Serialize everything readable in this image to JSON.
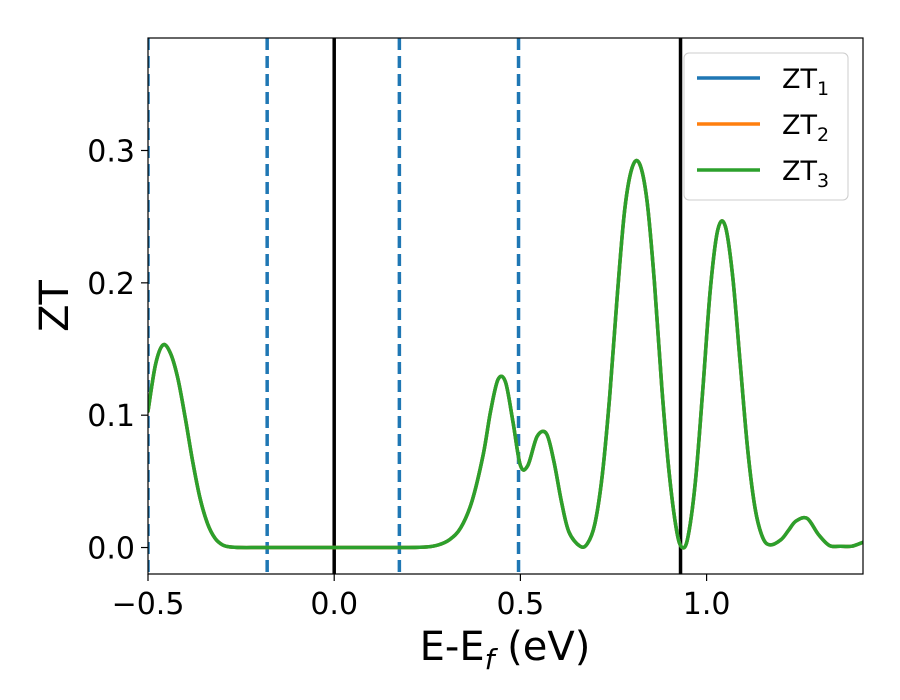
{
  "chart_data": {
    "type": "line",
    "title": "",
    "xlabel": "E-E",
    "xlabel_sub": "f",
    "xlabel_unit": " (eV)",
    "ylabel": "ZT",
    "xlim": [
      -0.5,
      1.42
    ],
    "ylim": [
      -0.02,
      0.385
    ],
    "xticks": [
      -0.5,
      0.0,
      0.5,
      1.0
    ],
    "xtick_labels": [
      "−0.5",
      "0.0",
      "0.5",
      "1.0"
    ],
    "yticks": [
      0.0,
      0.1,
      0.2,
      0.3
    ],
    "ytick_labels": [
      "0.0",
      "0.1",
      "0.2",
      "0.3"
    ],
    "grid": false,
    "legend_position": "top-right",
    "vlines_solid": [
      0.0,
      0.93
    ],
    "vlines_dashed": [
      -0.5,
      -0.18,
      0.175,
      0.495
    ],
    "vline_solid_color": "#000000",
    "vline_dashed_color": "#1f77b4",
    "series": [
      {
        "name": "ZT",
        "sub": "1",
        "color": "#1f77b4",
        "x": [
          -0.5,
          -0.48,
          -0.46,
          -0.44,
          -0.42,
          -0.4,
          -0.38,
          -0.36,
          -0.34,
          -0.32,
          -0.3,
          -0.28,
          -0.25,
          -0.2,
          -0.1,
          0.0,
          0.1,
          0.2,
          0.25,
          0.28,
          0.31,
          0.34,
          0.37,
          0.4,
          0.42,
          0.44,
          0.46,
          0.48,
          0.5,
          0.52,
          0.545,
          0.57,
          0.59,
          0.61,
          0.63,
          0.66,
          0.68,
          0.7,
          0.72,
          0.74,
          0.76,
          0.78,
          0.8,
          0.82,
          0.84,
          0.86,
          0.88,
          0.9,
          0.92,
          0.935,
          0.95,
          0.97,
          0.99,
          1.01,
          1.03,
          1.05,
          1.07,
          1.09,
          1.11,
          1.13,
          1.15,
          1.17,
          1.2,
          1.22,
          1.24,
          1.27,
          1.3,
          1.33,
          1.36,
          1.39,
          1.42
        ],
        "values": [
          0.103,
          0.138,
          0.153,
          0.147,
          0.128,
          0.098,
          0.065,
          0.037,
          0.018,
          0.007,
          0.002,
          0.0005,
          0.0,
          0.0,
          0.0,
          0.0,
          0.0,
          0.0,
          0.0005,
          0.002,
          0.006,
          0.015,
          0.035,
          0.07,
          0.103,
          0.127,
          0.125,
          0.095,
          0.062,
          0.062,
          0.084,
          0.086,
          0.065,
          0.035,
          0.012,
          0.001,
          0.003,
          0.018,
          0.055,
          0.115,
          0.19,
          0.255,
          0.287,
          0.29,
          0.262,
          0.2,
          0.12,
          0.055,
          0.012,
          0.0,
          0.008,
          0.05,
          0.12,
          0.195,
          0.24,
          0.243,
          0.205,
          0.14,
          0.075,
          0.03,
          0.008,
          0.002,
          0.006,
          0.013,
          0.02,
          0.022,
          0.01,
          0.0015,
          0.001,
          0.001,
          0.004
        ]
      },
      {
        "name": "ZT",
        "sub": "2",
        "color": "#ff7f0e",
        "x": [
          -0.5,
          -0.48,
          -0.46,
          -0.44,
          -0.42,
          -0.4,
          -0.38,
          -0.36,
          -0.34,
          -0.32,
          -0.3,
          -0.28,
          -0.25,
          -0.2,
          -0.1,
          0.0,
          0.1,
          0.2,
          0.25,
          0.28,
          0.31,
          0.34,
          0.37,
          0.4,
          0.42,
          0.44,
          0.46,
          0.48,
          0.5,
          0.52,
          0.545,
          0.57,
          0.59,
          0.61,
          0.63,
          0.66,
          0.68,
          0.7,
          0.72,
          0.74,
          0.76,
          0.78,
          0.8,
          0.82,
          0.84,
          0.86,
          0.88,
          0.9,
          0.92,
          0.935,
          0.95,
          0.97,
          0.99,
          1.01,
          1.03,
          1.05,
          1.07,
          1.09,
          1.11,
          1.13,
          1.15,
          1.17,
          1.2,
          1.22,
          1.24,
          1.27,
          1.3,
          1.33,
          1.36,
          1.39,
          1.42
        ],
        "values": [
          0.103,
          0.138,
          0.153,
          0.147,
          0.128,
          0.098,
          0.065,
          0.037,
          0.018,
          0.007,
          0.002,
          0.0005,
          0.0,
          0.0,
          0.0,
          0.0,
          0.0,
          0.0,
          0.0005,
          0.002,
          0.006,
          0.015,
          0.035,
          0.07,
          0.103,
          0.127,
          0.125,
          0.095,
          0.062,
          0.062,
          0.084,
          0.086,
          0.065,
          0.035,
          0.012,
          0.001,
          0.003,
          0.018,
          0.055,
          0.115,
          0.19,
          0.255,
          0.287,
          0.29,
          0.262,
          0.2,
          0.12,
          0.055,
          0.012,
          0.0,
          0.008,
          0.05,
          0.12,
          0.195,
          0.24,
          0.243,
          0.205,
          0.14,
          0.075,
          0.03,
          0.008,
          0.002,
          0.006,
          0.013,
          0.02,
          0.022,
          0.01,
          0.0015,
          0.001,
          0.001,
          0.004
        ]
      },
      {
        "name": "ZT",
        "sub": "3",
        "color": "#2ca02c",
        "x": [
          -0.5,
          -0.48,
          -0.46,
          -0.44,
          -0.42,
          -0.4,
          -0.38,
          -0.36,
          -0.34,
          -0.32,
          -0.3,
          -0.28,
          -0.25,
          -0.2,
          -0.1,
          0.0,
          0.1,
          0.2,
          0.25,
          0.28,
          0.31,
          0.34,
          0.37,
          0.4,
          0.42,
          0.44,
          0.46,
          0.48,
          0.5,
          0.52,
          0.545,
          0.57,
          0.59,
          0.61,
          0.63,
          0.66,
          0.68,
          0.7,
          0.72,
          0.74,
          0.76,
          0.78,
          0.8,
          0.82,
          0.84,
          0.86,
          0.88,
          0.9,
          0.92,
          0.935,
          0.95,
          0.97,
          0.99,
          1.01,
          1.03,
          1.05,
          1.07,
          1.09,
          1.11,
          1.13,
          1.15,
          1.17,
          1.2,
          1.22,
          1.24,
          1.27,
          1.3,
          1.33,
          1.36,
          1.39,
          1.42
        ],
        "values": [
          0.103,
          0.138,
          0.153,
          0.147,
          0.128,
          0.098,
          0.065,
          0.037,
          0.018,
          0.007,
          0.002,
          0.0005,
          0.0,
          0.0,
          0.0,
          0.0,
          0.0,
          0.0,
          0.0005,
          0.002,
          0.006,
          0.015,
          0.035,
          0.07,
          0.103,
          0.127,
          0.125,
          0.095,
          0.062,
          0.062,
          0.084,
          0.086,
          0.065,
          0.035,
          0.012,
          0.001,
          0.003,
          0.018,
          0.055,
          0.115,
          0.19,
          0.255,
          0.287,
          0.29,
          0.262,
          0.2,
          0.12,
          0.055,
          0.012,
          0.0,
          0.008,
          0.05,
          0.12,
          0.195,
          0.24,
          0.243,
          0.205,
          0.14,
          0.075,
          0.03,
          0.008,
          0.002,
          0.006,
          0.013,
          0.02,
          0.022,
          0.01,
          0.0015,
          0.001,
          0.001,
          0.004
        ]
      }
    ]
  }
}
